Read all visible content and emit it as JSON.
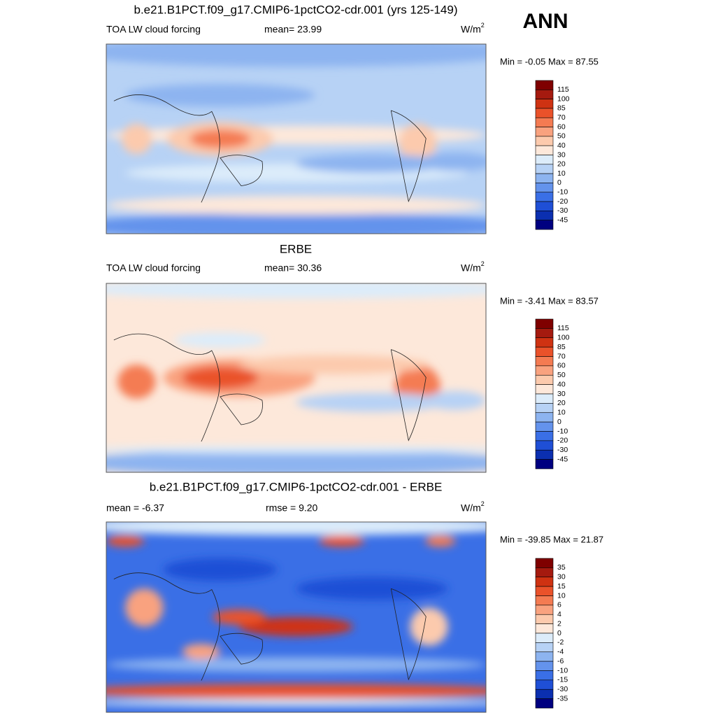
{
  "season": "ANN",
  "panels": [
    {
      "title": "b.e21.B1PCT.f09_g17.CMIP6-1pctCO2-cdr.001 (yrs 125-149)",
      "left": "TOA LW cloud forcing",
      "center": "mean=  23.99",
      "units": "W/m",
      "units_sup": "2",
      "minmax": "Min =  -0.05 Max =  87.55",
      "colorbar": [
        "115",
        "100",
        "85",
        "70",
        "60",
        "50",
        "40",
        "30",
        "20",
        "10",
        "0",
        "-10",
        "-20",
        "-30",
        "-45"
      ]
    },
    {
      "title": "ERBE",
      "left": "TOA LW cloud forcing",
      "center": "mean=  30.36",
      "units": "W/m",
      "units_sup": "2",
      "minmax": "Min =  -3.41 Max =  83.57",
      "colorbar": [
        "115",
        "100",
        "85",
        "70",
        "60",
        "50",
        "40",
        "30",
        "20",
        "10",
        "0",
        "-10",
        "-20",
        "-30",
        "-45"
      ]
    },
    {
      "title": "b.e21.B1PCT.f09_g17.CMIP6-1pctCO2-cdr.001 - ERBE",
      "left": "mean =  -6.37",
      "center": "rmse =   9.20",
      "units": "W/m",
      "units_sup": "2",
      "minmax": "Min = -39.85 Max =  21.87",
      "colorbar": [
        "35",
        "30",
        "15",
        "10",
        "6",
        "4",
        "2",
        "0",
        "-2",
        "-4",
        "-6",
        "-10",
        "-15",
        "-30",
        "-35"
      ]
    }
  ]
}
